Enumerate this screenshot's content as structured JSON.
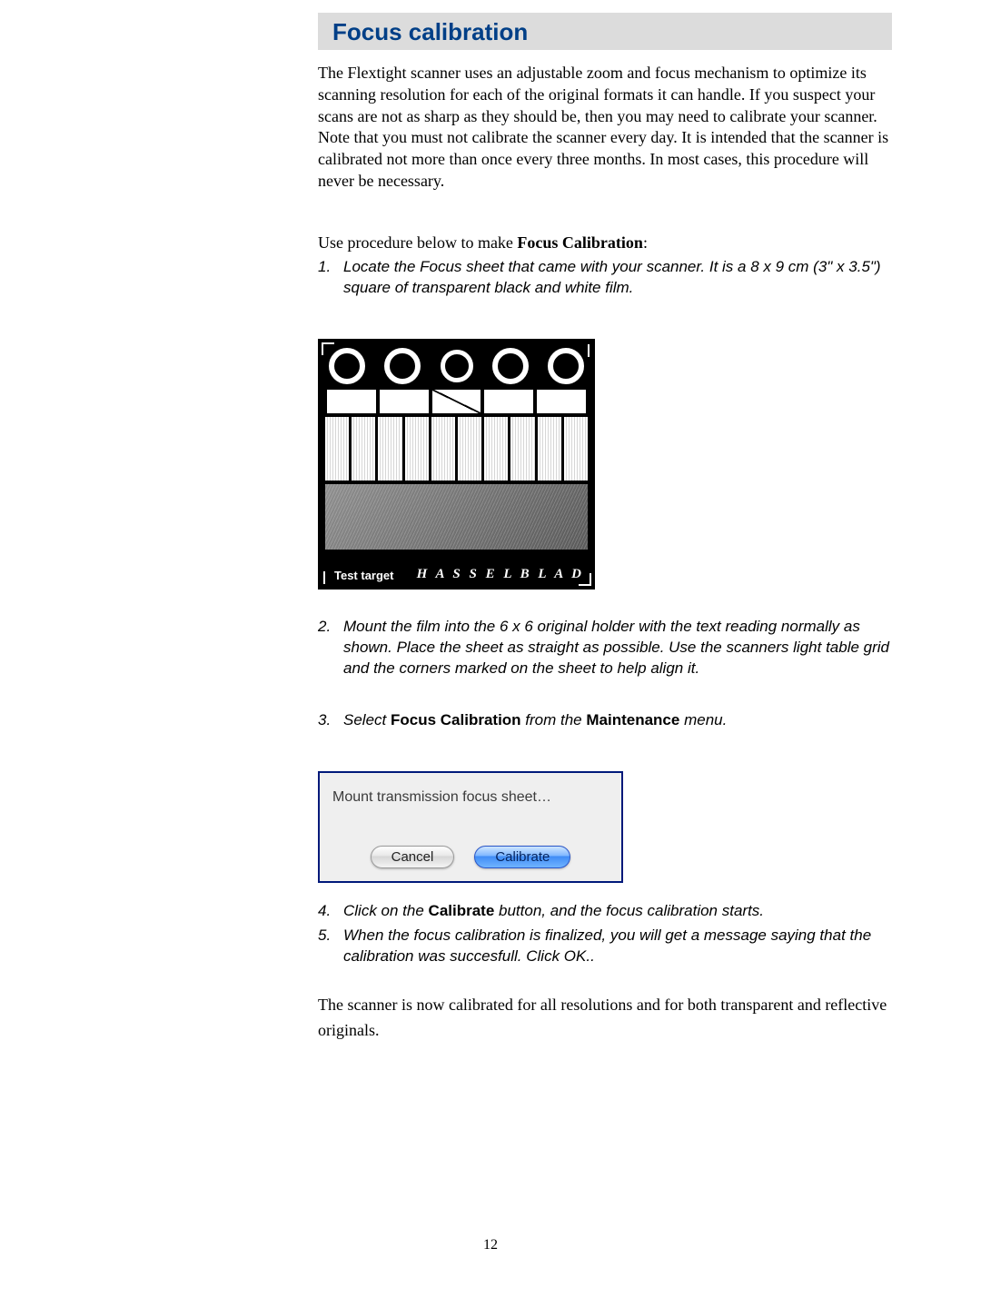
{
  "header": {
    "title": "Focus calibration"
  },
  "intro": "The Flextight scanner uses an adjustable zoom and focus mechanism to optimize its scanning resolution for each of the original formats it can handle. If you suspect your scans are not as sharp as they should be, then you may need to calibrate your scanner. Note that you must not calibrate the scanner every day. It is intended that the scanner is calibrated not more than once every three months. In most cases, this procedure will never be necessary.",
  "leadin_before": "Use procedure below to make ",
  "leadin_bold": "Focus Calibration",
  "leadin_after": ":",
  "steps": {
    "s1": "Locate the Focus sheet that came with your scanner. It is a 8 x 9 cm (3\" x 3.5\") square of transparent  black and white film.",
    "s2": "Mount the film into the 6 x 6 original holder with the text reading normally as shown. Place the sheet as straight as possible. Use the scanners light table grid and the corners marked on the sheet to help align it.",
    "s3_before": "Select ",
    "s3_bold1": "Focus Calibration",
    "s3_mid": " from the ",
    "s3_bold2": "Maintenance",
    "s3_after": " menu.",
    "s4_before": "Click on the ",
    "s4_bold": "Calibrate",
    "s4_after": " button, and the focus calibration starts.",
    "s5": "When the focus calibration is finalized, you will get a message saying that the calibration was succesfull. Click OK.."
  },
  "target": {
    "label": "Test target",
    "brand": "H A S S E L B L A D"
  },
  "dialog": {
    "message": "Mount transmission focus sheet…",
    "cancel": "Cancel",
    "ok": "Calibrate"
  },
  "closing": "The scanner is now calibrated for all resolutions and for both transparent and reflective originals.",
  "page_number": "12",
  "colors": {
    "header_bg": "#dcdcdc",
    "header_text": "#003f87",
    "dialog_border": "#00197a"
  }
}
